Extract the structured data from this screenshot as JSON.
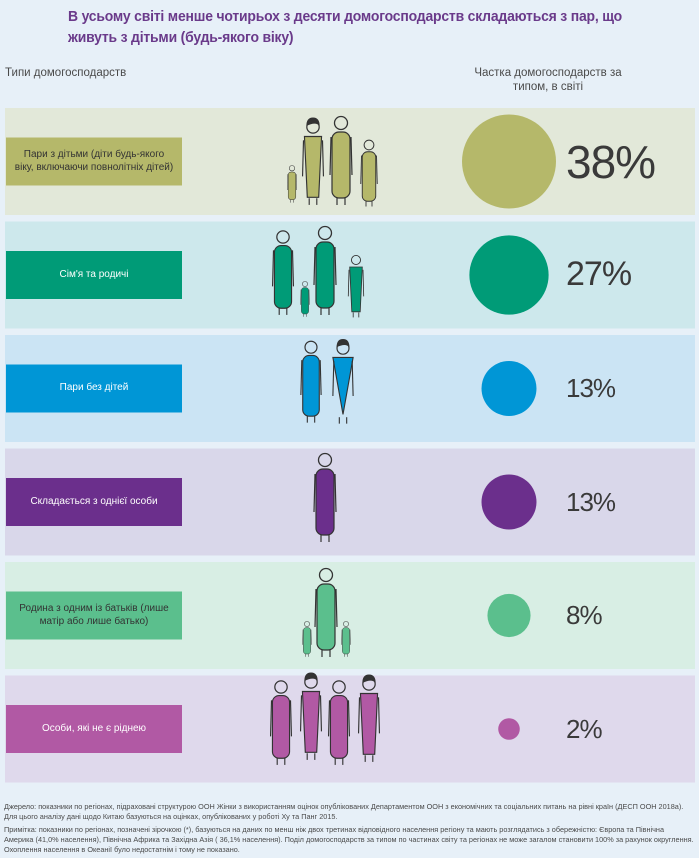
{
  "title": "В усьому світі менше чотирьох з десяти домогосподарств складаються з пар, що живуть з дітьми (будь-якого віку)",
  "column_left": "Типи домогосподарств",
  "column_right": "Частка домогосподарств за типом, в світі",
  "chart_data": {
    "type": "bubble",
    "categories": [
      "Пари з дітьми (діти будь-якого віку, включаючи повнолітніх дітей)",
      "Сім'я та родичі",
      "Пари без дітей",
      "Складається з однієї особи",
      "Родина з одним із батьків (лише матір або лише батько)",
      "Особи, які не є ріднею"
    ],
    "values": [
      38,
      27,
      13,
      13,
      8,
      2
    ],
    "value_labels": [
      "38%",
      "27%",
      "13%",
      "13%",
      "8%",
      "2%"
    ],
    "colors": [
      "#b5b86a",
      "#009b77",
      "#0096d6",
      "#6b2f8c",
      "#5bbf8d",
      "#b159a4"
    ],
    "row_backgrounds": [
      "#e2e8d9",
      "#cde8ec",
      "#cbe4f4",
      "#d9d7ea",
      "#d8eee4",
      "#dfd9ec"
    ],
    "label_text_colors": [
      "#333333",
      "#ffffff",
      "#ffffff",
      "#ffffff",
      "#333333",
      "#ffffff"
    ],
    "icons": [
      "couple-with-children-icon",
      "family-with-relatives-icon",
      "couple-icon",
      "single-person-icon",
      "single-parent-icon",
      "non-relatives-icon"
    ]
  },
  "notes": {
    "source": "Джерело: показники по регіонах, підраховані структурою ООН Жінки з використанням оцінок опублікованих Департаментом ООН з економічних та соціальних питань на рівні країн (ДЕСП ООН 2018а). Для цього аналізу дані щодо Китаю базуються на оцінках, опублікованих у роботі Ху та Панг 2015.",
    "note": "Примітка: показники по регіонах, позначені зірочкою (*), базуються на даних по менш ніж двох третинах відповідного населення регіону та мають розглядатись з обережністю: Європа та Північна Америка (41,0% населення), Північна Африка та Західна Азія ( 36,1% населення). Поділ домогосподарств за типом по частинах світу та регіонах не може загалом становити 100% за рахунок округлення. Охоплення населення в Океанії було недостатнім і тому не показано."
  }
}
